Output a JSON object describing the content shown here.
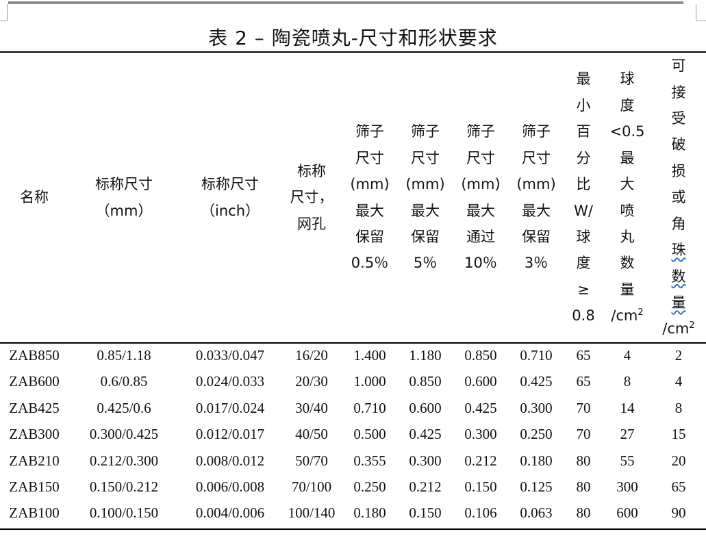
{
  "title": "表 2  – 陶瓷喷丸-尺寸和形状要求",
  "headers": {
    "h1": [
      "名称"
    ],
    "h2": [
      "标称尺寸",
      "（mm）"
    ],
    "h3": [
      "标称尺寸",
      "（inch）"
    ],
    "h4": [
      "标称",
      "尺寸，",
      "网孔"
    ],
    "h5": [
      "筛子",
      "尺寸",
      "(mm)",
      "最大",
      "保留",
      "0.5％"
    ],
    "h6": [
      "筛子",
      "尺寸",
      "(mm)",
      "最大",
      "保留",
      "5％"
    ],
    "h7": [
      "筛子",
      "尺寸",
      "(mm)",
      "最大",
      "通过",
      "10％"
    ],
    "h8": [
      "筛子",
      "尺寸",
      "(mm)",
      "最大",
      "保留",
      "3％"
    ],
    "h9": [
      "最",
      "小",
      "百",
      "分",
      "比",
      "W/",
      "球",
      "度",
      "≥",
      "0.8"
    ],
    "h10": [
      "球",
      "度",
      "<0.5",
      "最",
      "大",
      "喷",
      "丸",
      "数",
      "量",
      "/cm"
    ],
    "h11": [
      "可",
      "接",
      "受",
      "破",
      "损",
      "或",
      "角",
      "珠",
      "数",
      "量",
      "/cm"
    ],
    "h10_sup": "2",
    "h11_sup": "2"
  },
  "rows": [
    [
      "ZAB850",
      "0.85/1.18",
      "0.033/0.047",
      "16/20",
      "1.400",
      "1.180",
      "0.850",
      "0.710",
      "65",
      "4",
      "2"
    ],
    [
      "ZAB600",
      "0.6/0.85",
      "0.024/0.033",
      "20/30",
      "1.000",
      "0.850",
      "0.600",
      "0.425",
      "65",
      "8",
      "4"
    ],
    [
      "ZAB425",
      "0.425/0.6",
      "0.017/0.024",
      "30/40",
      "0.710",
      "0.600",
      "0.425",
      "0.300",
      "70",
      "14",
      "8"
    ],
    [
      "ZAB300",
      "0.300/0.425",
      "0.012/0.017",
      "40/50",
      "0.500",
      "0.425",
      "0.300",
      "0.250",
      "70",
      "27",
      "15"
    ],
    [
      "ZAB210",
      "0.212/0.300",
      "0.008/0.012",
      "50/70",
      "0.355",
      "0.300",
      "0.212",
      "0.180",
      "80",
      "55",
      "20"
    ],
    [
      "ZAB150",
      "0.150/0.212",
      "0.006/0.008",
      "70/100",
      "0.250",
      "0.212",
      "0.150",
      "0.125",
      "80",
      "300",
      "65"
    ],
    [
      "ZAB100",
      "0.100/0.150",
      "0.004/0.006",
      "100/140",
      "0.180",
      "0.150",
      "0.106",
      "0.063",
      "80",
      "600",
      "90"
    ]
  ]
}
